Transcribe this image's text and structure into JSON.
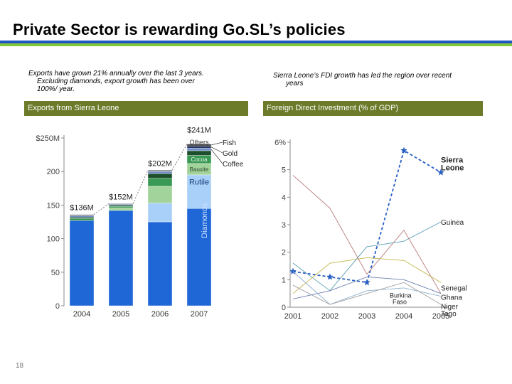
{
  "slide": {
    "title": "Private Sector is rewarding Go.SL’s policies",
    "page_number": "18",
    "colors": {
      "blue_rule": "#2255c4",
      "green_rule": "#7ec83a",
      "header_box": "#6b7b2a"
    }
  },
  "left": {
    "caption_line1": "Exports have grown 21% annually over the last 3 years.",
    "caption_line2": "Excluding diamonds, export growth has been over",
    "caption_line3": "100%/ year.",
    "header": "Exports from Sierra Leone"
  },
  "right": {
    "caption_line1": "Sierra Leone’s FDI growth has led the region over recent",
    "caption_line2": "years",
    "header": "Foreign Direct Investment (% of GDP)"
  },
  "chart_data": [
    {
      "type": "bar",
      "title": "Exports from Sierra Leone",
      "categories": [
        "2004",
        "2005",
        "2006",
        "2007"
      ],
      "ylim": [
        0,
        250
      ],
      "yticks": [
        "0",
        "50",
        "100",
        "150",
        "200",
        "$250M"
      ],
      "totals": [
        "$136M",
        "$152M",
        "$202M",
        "$241M"
      ],
      "segment_labels": {
        "fish": "Fish",
        "gold": "Gold",
        "coffee": "Coffee",
        "others": "Others",
        "cocoa": "Cocoa",
        "bauxite": "Bauxite",
        "rutile": "Rutile",
        "diamonds": "Diamonds"
      },
      "series": [
        {
          "name": "Diamonds",
          "values": [
            127,
            142,
            125,
            145
          ]
        },
        {
          "name": "Rutile",
          "values": [
            0,
            0,
            28,
            50
          ]
        },
        {
          "name": "Bauxite",
          "values": [
            0,
            4,
            25,
            17
          ]
        },
        {
          "name": "Cocoa",
          "values": [
            3,
            2,
            12,
            12
          ]
        },
        {
          "name": "Others",
          "values": [
            2,
            2,
            7,
            7
          ]
        },
        {
          "name": "Coffee",
          "values": [
            2,
            1,
            3,
            4
          ]
        },
        {
          "name": "Gold",
          "values": [
            1,
            1,
            1,
            3
          ]
        },
        {
          "name": "Fish",
          "values": [
            1,
            0,
            1,
            3
          ]
        }
      ]
    },
    {
      "type": "line",
      "title": "Foreign Direct Investment (% of GDP)",
      "x": [
        "2001",
        "2002",
        "2003",
        "2004",
        "2005"
      ],
      "ylim": [
        0,
        6
      ],
      "yticks": [
        "0",
        "1",
        "2",
        "3",
        "4",
        "5",
        "6%"
      ],
      "series": [
        {
          "name": "Sierra Leone",
          "label": "Sierra Leone",
          "values": [
            1.3,
            1.1,
            0.9,
            5.7,
            4.9
          ]
        },
        {
          "name": "Guinea",
          "label": "Guinea",
          "values": [
            1.6,
            0.6,
            2.2,
            2.4,
            3.1
          ]
        },
        {
          "name": "Senegal",
          "label": "Senegal",
          "values": [
            4.8,
            3.6,
            1.2,
            2.8,
            0.5
          ]
        },
        {
          "name": "Ghana",
          "label": "Ghana",
          "values": [
            0.5,
            1.6,
            1.8,
            1.7,
            0.9
          ]
        },
        {
          "name": "Burkina Faso",
          "label": "Burkina Faso",
          "values": [
            0.3,
            0.6,
            1.1,
            1.0,
            0.5
          ]
        },
        {
          "name": "Niger",
          "label": "Niger",
          "values": [
            1.3,
            0.1,
            0.6,
            0.7,
            0.4
          ]
        },
        {
          "name": "Togo",
          "label": "Togo",
          "values": [
            0.8,
            0.1,
            0.5,
            0.9,
            0.1
          ]
        }
      ]
    }
  ]
}
